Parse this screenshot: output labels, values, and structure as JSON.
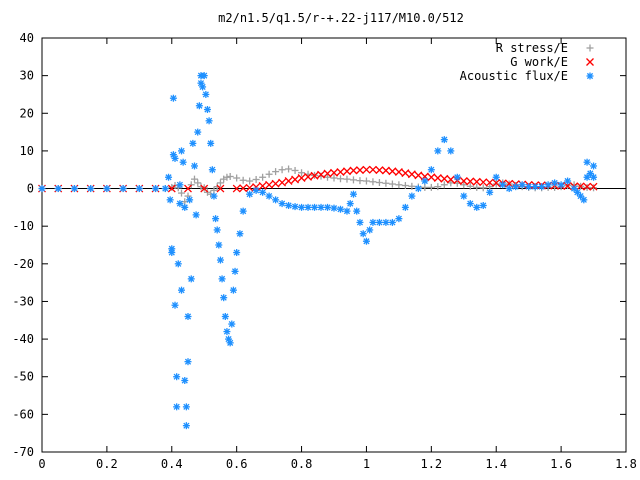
{
  "chart_data": {
    "type": "scatter",
    "title": "m2/n1.5/q1.5/r-+.22-j117/M10.0/512",
    "xlabel": "",
    "ylabel": "",
    "xlim": [
      0,
      1.8
    ],
    "ylim": [
      -70,
      40
    ],
    "x_ticks": [
      "0",
      "0.2",
      "0.4",
      "0.6",
      "0.8",
      "1",
      "1.2",
      "1.4",
      "1.6",
      "1.8"
    ],
    "y_ticks": [
      "40",
      "30",
      "20",
      "10",
      "0",
      "-10",
      "-20",
      "-30",
      "-40",
      "-50",
      "-60",
      "-70"
    ],
    "grid": false,
    "legend_position": "top-right",
    "series": [
      {
        "name": "R stress/E",
        "color": "#a0a0a0",
        "marker": "plus",
        "points": [
          [
            0.0,
            0
          ],
          [
            0.05,
            0
          ],
          [
            0.1,
            0
          ],
          [
            0.15,
            0
          ],
          [
            0.2,
            0
          ],
          [
            0.25,
            0
          ],
          [
            0.3,
            0
          ],
          [
            0.35,
            0
          ],
          [
            0.38,
            0
          ],
          [
            0.4,
            0.3
          ],
          [
            0.41,
            0.8
          ],
          [
            0.42,
            0.2
          ],
          [
            0.43,
            -1.2
          ],
          [
            0.44,
            -3.5
          ],
          [
            0.45,
            -2
          ],
          [
            0.46,
            1
          ],
          [
            0.47,
            2.5
          ],
          [
            0.48,
            1.5
          ],
          [
            0.49,
            0.5
          ],
          [
            0.5,
            0.2
          ],
          [
            0.51,
            -1
          ],
          [
            0.52,
            -1.5
          ],
          [
            0.53,
            -0.5
          ],
          [
            0.54,
            0.5
          ],
          [
            0.55,
            1.5
          ],
          [
            0.56,
            2.5
          ],
          [
            0.57,
            3
          ],
          [
            0.58,
            3.2
          ],
          [
            0.6,
            2.8
          ],
          [
            0.62,
            2.2
          ],
          [
            0.64,
            2
          ],
          [
            0.66,
            2.4
          ],
          [
            0.68,
            3
          ],
          [
            0.7,
            3.8
          ],
          [
            0.72,
            4.5
          ],
          [
            0.74,
            5
          ],
          [
            0.76,
            5.2
          ],
          [
            0.78,
            4.8
          ],
          [
            0.8,
            4.2
          ],
          [
            0.82,
            3.8
          ],
          [
            0.84,
            3.5
          ],
          [
            0.86,
            3.3
          ],
          [
            0.88,
            3
          ],
          [
            0.9,
            2.8
          ],
          [
            0.92,
            2.6
          ],
          [
            0.94,
            2.5
          ],
          [
            0.96,
            2.3
          ],
          [
            0.98,
            2.1
          ],
          [
            1.0,
            2
          ],
          [
            1.02,
            1.8
          ],
          [
            1.04,
            1.6
          ],
          [
            1.06,
            1.4
          ],
          [
            1.08,
            1.2
          ],
          [
            1.1,
            1
          ],
          [
            1.12,
            0.8
          ],
          [
            1.14,
            0.6
          ],
          [
            1.16,
            0.4
          ],
          [
            1.18,
            0.3
          ],
          [
            1.2,
            0.3
          ],
          [
            1.22,
            0.5
          ],
          [
            1.24,
            1
          ],
          [
            1.26,
            1.5
          ],
          [
            1.28,
            1.4
          ],
          [
            1.3,
            1
          ],
          [
            1.32,
            0.6
          ],
          [
            1.34,
            0.3
          ],
          [
            1.36,
            0.2
          ],
          [
            1.38,
            0.5
          ],
          [
            1.4,
            1.2
          ],
          [
            1.42,
            1.5
          ],
          [
            1.44,
            1.2
          ],
          [
            1.46,
            0.8
          ],
          [
            1.48,
            0.5
          ],
          [
            1.5,
            0.3
          ],
          [
            1.52,
            0.2
          ],
          [
            1.54,
            0.2
          ],
          [
            1.56,
            0.3
          ],
          [
            1.58,
            0.3
          ],
          [
            1.6,
            0.5
          ],
          [
            1.62,
            0.8
          ],
          [
            1.64,
            1
          ],
          [
            1.66,
            0.6
          ],
          [
            1.68,
            0.3
          ],
          [
            1.7,
            0.2
          ]
        ]
      },
      {
        "name": "G work/E",
        "color": "#ff0000",
        "marker": "cross",
        "points": [
          [
            0.0,
            0
          ],
          [
            0.05,
            0
          ],
          [
            0.1,
            0
          ],
          [
            0.15,
            0
          ],
          [
            0.2,
            0
          ],
          [
            0.25,
            0
          ],
          [
            0.3,
            0
          ],
          [
            0.35,
            0
          ],
          [
            0.4,
            0
          ],
          [
            0.45,
            0
          ],
          [
            0.5,
            0
          ],
          [
            0.55,
            0
          ],
          [
            0.6,
            0
          ],
          [
            0.62,
            0.1
          ],
          [
            0.64,
            0.2
          ],
          [
            0.66,
            0.4
          ],
          [
            0.68,
            0.7
          ],
          [
            0.7,
            1
          ],
          [
            0.72,
            1.3
          ],
          [
            0.74,
            1.6
          ],
          [
            0.76,
            2
          ],
          [
            0.78,
            2.4
          ],
          [
            0.8,
            2.8
          ],
          [
            0.82,
            3.1
          ],
          [
            0.84,
            3.4
          ],
          [
            0.86,
            3.7
          ],
          [
            0.88,
            4
          ],
          [
            0.9,
            4.2
          ],
          [
            0.92,
            4.4
          ],
          [
            0.94,
            4.6
          ],
          [
            0.96,
            4.8
          ],
          [
            0.98,
            4.9
          ],
          [
            1.0,
            5
          ],
          [
            1.02,
            5
          ],
          [
            1.04,
            4.9
          ],
          [
            1.06,
            4.8
          ],
          [
            1.08,
            4.6
          ],
          [
            1.1,
            4.4
          ],
          [
            1.12,
            4.1
          ],
          [
            1.14,
            3.8
          ],
          [
            1.16,
            3.5
          ],
          [
            1.18,
            3.2
          ],
          [
            1.2,
            3
          ],
          [
            1.22,
            2.8
          ],
          [
            1.24,
            2.6
          ],
          [
            1.26,
            2.4
          ],
          [
            1.28,
            2.2
          ],
          [
            1.3,
            2
          ],
          [
            1.32,
            1.9
          ],
          [
            1.34,
            1.8
          ],
          [
            1.36,
            1.7
          ],
          [
            1.38,
            1.6
          ],
          [
            1.4,
            1.5
          ],
          [
            1.42,
            1.4
          ],
          [
            1.44,
            1.3
          ],
          [
            1.46,
            1.2
          ],
          [
            1.48,
            1.1
          ],
          [
            1.5,
            1
          ],
          [
            1.52,
            0.9
          ],
          [
            1.54,
            0.9
          ],
          [
            1.56,
            0.8
          ],
          [
            1.58,
            0.8
          ],
          [
            1.6,
            0.7
          ],
          [
            1.62,
            0.7
          ],
          [
            1.64,
            0.6
          ],
          [
            1.66,
            0.6
          ],
          [
            1.68,
            0.5
          ],
          [
            1.7,
            0.5
          ]
        ]
      },
      {
        "name": "Acoustic flux/E",
        "color": "#1e90ff",
        "marker": "star",
        "points": [
          [
            0.0,
            0
          ],
          [
            0.05,
            0
          ],
          [
            0.1,
            0
          ],
          [
            0.15,
            0
          ],
          [
            0.2,
            0
          ],
          [
            0.25,
            0
          ],
          [
            0.3,
            0
          ],
          [
            0.35,
            0
          ],
          [
            0.38,
            0
          ],
          [
            0.39,
            3
          ],
          [
            0.395,
            -3
          ],
          [
            0.4,
            -16
          ],
          [
            0.4,
            -17
          ],
          [
            0.405,
            24
          ],
          [
            0.405,
            9
          ],
          [
            0.41,
            8
          ],
          [
            0.41,
            -31
          ],
          [
            0.415,
            -50
          ],
          [
            0.415,
            -58
          ],
          [
            0.42,
            -20
          ],
          [
            0.425,
            1
          ],
          [
            0.425,
            -4
          ],
          [
            0.43,
            10
          ],
          [
            0.43,
            -27
          ],
          [
            0.435,
            7
          ],
          [
            0.44,
            -5
          ],
          [
            0.44,
            -51
          ],
          [
            0.445,
            -63
          ],
          [
            0.445,
            -58
          ],
          [
            0.45,
            -46
          ],
          [
            0.45,
            -34
          ],
          [
            0.455,
            -3
          ],
          [
            0.46,
            -24
          ],
          [
            0.465,
            12
          ],
          [
            0.47,
            6
          ],
          [
            0.475,
            -7
          ],
          [
            0.48,
            15
          ],
          [
            0.485,
            22
          ],
          [
            0.49,
            28
          ],
          [
            0.49,
            30
          ],
          [
            0.495,
            27
          ],
          [
            0.5,
            30
          ],
          [
            0.505,
            25
          ],
          [
            0.51,
            21
          ],
          [
            0.515,
            18
          ],
          [
            0.52,
            12
          ],
          [
            0.525,
            5
          ],
          [
            0.53,
            -2
          ],
          [
            0.535,
            -8
          ],
          [
            0.54,
            -11
          ],
          [
            0.545,
            -15
          ],
          [
            0.55,
            -19
          ],
          [
            0.555,
            -24
          ],
          [
            0.56,
            -29
          ],
          [
            0.565,
            -34
          ],
          [
            0.57,
            -38
          ],
          [
            0.575,
            -40
          ],
          [
            0.58,
            -41
          ],
          [
            0.585,
            -36
          ],
          [
            0.59,
            -27
          ],
          [
            0.595,
            -22
          ],
          [
            0.6,
            -17
          ],
          [
            0.61,
            -12
          ],
          [
            0.62,
            -6
          ],
          [
            0.64,
            -1.5
          ],
          [
            0.66,
            -0.5
          ],
          [
            0.68,
            -1
          ],
          [
            0.7,
            -2
          ],
          [
            0.72,
            -3
          ],
          [
            0.74,
            -4
          ],
          [
            0.76,
            -4.5
          ],
          [
            0.78,
            -4.8
          ],
          [
            0.8,
            -5
          ],
          [
            0.82,
            -5
          ],
          [
            0.84,
            -5
          ],
          [
            0.86,
            -5
          ],
          [
            0.88,
            -5
          ],
          [
            0.9,
            -5.2
          ],
          [
            0.92,
            -5.5
          ],
          [
            0.94,
            -6
          ],
          [
            0.95,
            -4
          ],
          [
            0.96,
            -1.5
          ],
          [
            0.97,
            -6
          ],
          [
            0.98,
            -9
          ],
          [
            0.99,
            -12
          ],
          [
            1.0,
            -14
          ],
          [
            1.01,
            -11
          ],
          [
            1.02,
            -9
          ],
          [
            1.04,
            -9
          ],
          [
            1.06,
            -9
          ],
          [
            1.08,
            -9
          ],
          [
            1.1,
            -8
          ],
          [
            1.12,
            -5
          ],
          [
            1.14,
            -2
          ],
          [
            1.16,
            0
          ],
          [
            1.18,
            2
          ],
          [
            1.2,
            5
          ],
          [
            1.22,
            10
          ],
          [
            1.24,
            13
          ],
          [
            1.26,
            10
          ],
          [
            1.28,
            3
          ],
          [
            1.3,
            -2
          ],
          [
            1.32,
            -4
          ],
          [
            1.34,
            -5
          ],
          [
            1.36,
            -4.5
          ],
          [
            1.38,
            -1
          ],
          [
            1.4,
            3
          ],
          [
            1.42,
            1
          ],
          [
            1.44,
            0
          ],
          [
            1.46,
            0.5
          ],
          [
            1.48,
            1
          ],
          [
            1.5,
            0.5
          ],
          [
            1.52,
            0.5
          ],
          [
            1.54,
            0.5
          ],
          [
            1.56,
            1
          ],
          [
            1.58,
            1.5
          ],
          [
            1.6,
            1
          ],
          [
            1.62,
            2
          ],
          [
            1.64,
            0
          ],
          [
            1.65,
            -1
          ],
          [
            1.66,
            -2
          ],
          [
            1.67,
            -3
          ],
          [
            1.68,
            3
          ],
          [
            1.68,
            7
          ],
          [
            1.69,
            4
          ],
          [
            1.7,
            6
          ],
          [
            1.7,
            3
          ]
        ]
      }
    ]
  }
}
